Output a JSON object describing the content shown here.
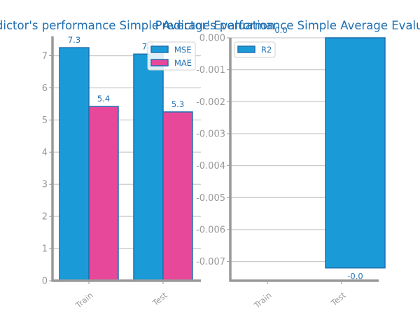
{
  "colors": {
    "title": "#1F6FB2",
    "axis": "#999999",
    "grid": "#CCCCCC",
    "tick_label": "#999999",
    "data_label": "#1F6FB2",
    "legend_text": "#1F6FB2",
    "bar_edge": "#1F6FB2",
    "mse": "#1A9BD7",
    "mae": "#E8489A",
    "r2": "#1A9BD7"
  },
  "chart_data": [
    {
      "type": "bar",
      "title": "Predictor's performance Simple Average Evaluation",
      "categories": [
        "Train",
        "Test"
      ],
      "series": [
        {
          "name": "MSE",
          "values": [
            7.25,
            7.05
          ],
          "labels": [
            "7.3",
            "7.1"
          ]
        },
        {
          "name": "MAE",
          "values": [
            5.42,
            5.25
          ],
          "labels": [
            "5.4",
            "5.3"
          ]
        }
      ],
      "yticks": [
        "0",
        "1",
        "2",
        "3",
        "4",
        "5",
        "6",
        "7"
      ],
      "ylim": [
        0,
        7.6
      ],
      "grid": true,
      "legend": "top-right"
    },
    {
      "type": "bar",
      "title": "Predictor's performance Simple Average Evaluation",
      "categories": [
        "Train",
        "Test"
      ],
      "series": [
        {
          "name": "R2",
          "values": [
            0.0,
            -0.0072
          ],
          "labels": [
            "0.0",
            "-0.0"
          ]
        }
      ],
      "yticks": [
        "0.000",
        "-0.001",
        "-0.002",
        "-0.003",
        "-0.004",
        "-0.005",
        "-0.006",
        "-0.007"
      ],
      "ylim": [
        -0.0076,
        0.0
      ],
      "grid": true,
      "legend": "top-left"
    }
  ]
}
